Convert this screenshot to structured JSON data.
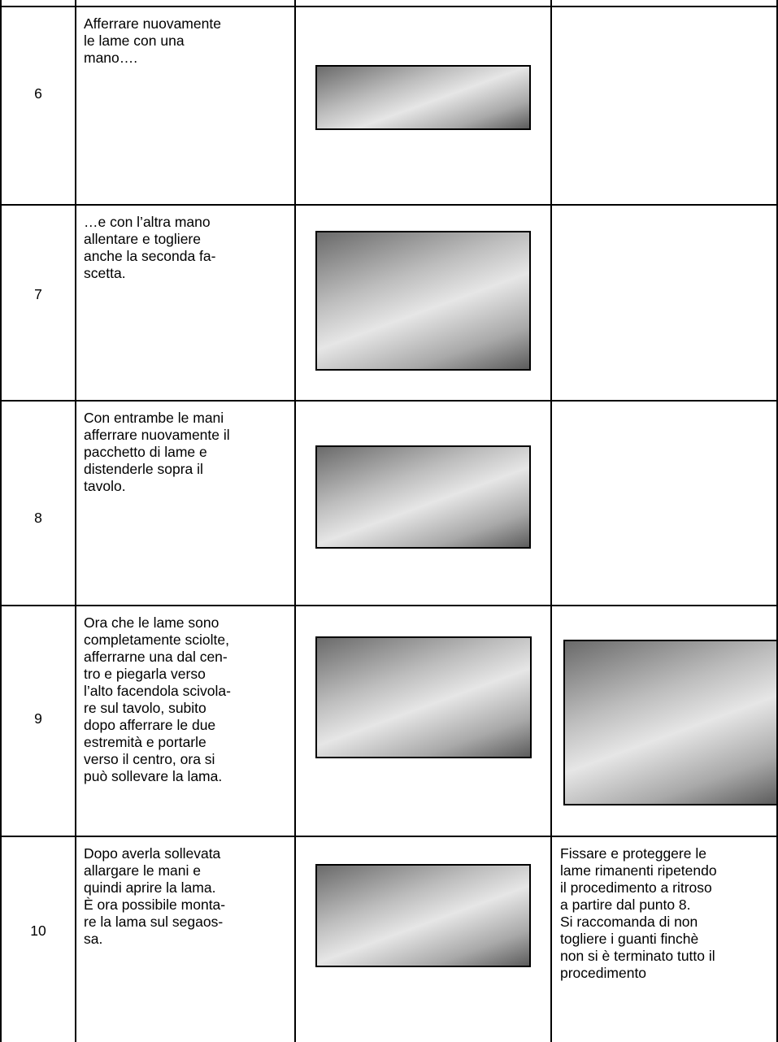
{
  "table": {
    "rows": [
      {
        "number": "6",
        "description": [
          "Afferrare nuovamente",
          "le lame con una",
          "mano…."
        ],
        "note": []
      },
      {
        "number": "7",
        "description": [
          "…e con l’altra mano",
          "allentare e togliere",
          "anche la seconda fa-",
          "scetta."
        ],
        "note": []
      },
      {
        "number": "8",
        "description": [
          "Con entrambe le mani",
          "afferrare nuovamente il",
          "pacchetto di lame e",
          "distenderle sopra il",
          "tavolo."
        ],
        "note": []
      },
      {
        "number": "9",
        "description": [
          "Ora che le lame sono",
          "completamente sciolte,",
          "afferrarne una dal cen-",
          "tro e piegarla verso",
          "l’alto facendola scivola-",
          "re sul tavolo, subito",
          "dopo afferrare le due",
          "estremità e portarle",
          "verso il centro, ora si",
          "può sollevare la lama."
        ],
        "note": []
      },
      {
        "number": "10",
        "description": [
          "Dopo averla sollevata",
          "allargare le mani e",
          "quindi aprire la lama.",
          "È ora possibile monta-",
          "re la lama sul segaos-",
          "sa."
        ],
        "note": [
          "Fissare e proteggere le",
          "lame rimanenti ripetendo",
          "il procedimento a ritroso",
          "a partire dal punto 8.",
          "Si raccomanda di non",
          "togliere i guanti finchè",
          "non si è terminato tutto il",
          "procedimento"
        ]
      }
    ]
  }
}
